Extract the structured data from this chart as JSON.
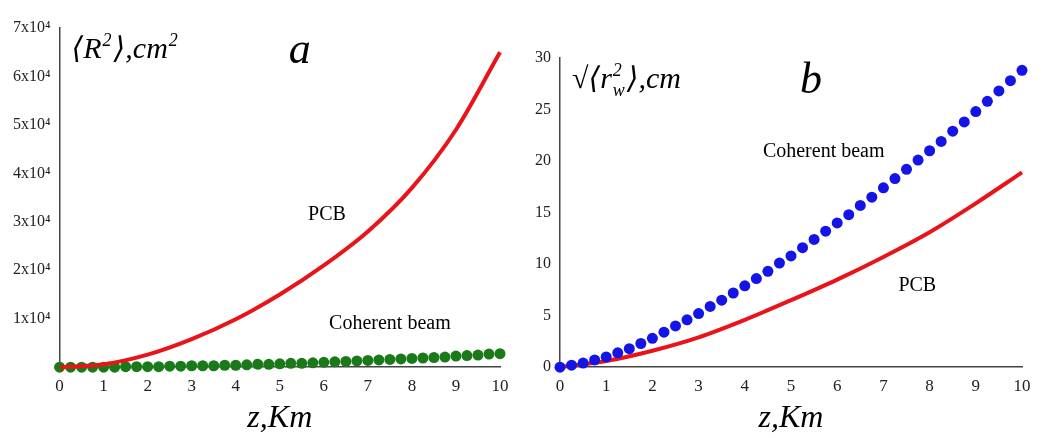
{
  "chart_data": [
    {
      "type": "line",
      "ylabel": "⟨R$^{2}$⟩,cm$^{2}$",
      "xlabel": "z,Km",
      "annotations": [
        "a"
      ],
      "xlim": [
        0,
        10
      ],
      "xticks": [
        0,
        1,
        2,
        3,
        4,
        5,
        6,
        7,
        8,
        9,
        10
      ],
      "ylim": [
        0,
        70000
      ],
      "yticks": [
        {
          "value": 0,
          "label": null
        },
        {
          "value": 10000,
          "label": "1x10⁴"
        },
        {
          "value": 20000,
          "label": "2x10⁴"
        },
        {
          "value": 30000,
          "label": "3x10⁴"
        },
        {
          "value": 40000,
          "label": "4x10⁴"
        },
        {
          "value": 50000,
          "label": "5x10⁴"
        },
        {
          "value": 60000,
          "label": "6x10⁴"
        },
        {
          "value": 70000,
          "label": "7x10⁴"
        }
      ],
      "series": [
        {
          "name": "PCB",
          "type": "line",
          "color": "#e8141a",
          "x": [
            0,
            1,
            2,
            3,
            4,
            5,
            6,
            7,
            8,
            9,
            10
          ],
          "values": [
            0,
            600,
            2600,
            5800,
            9900,
            15000,
            21000,
            28000,
            37000,
            49000,
            65000
          ]
        },
        {
          "name": "Coherent beam",
          "type": "scatter",
          "marker": "circle",
          "color": "#1a7a1a",
          "x": [
            0,
            0.25,
            0.5,
            0.75,
            1,
            1.25,
            1.5,
            1.75,
            2,
            2.25,
            2.5,
            2.75,
            3,
            3.25,
            3.5,
            3.75,
            4,
            4.25,
            4.5,
            4.75,
            5,
            5.25,
            5.5,
            5.75,
            6,
            6.25,
            6.5,
            6.75,
            7,
            7.25,
            7.5,
            7.75,
            8,
            8.25,
            8.5,
            8.75,
            9,
            9.25,
            9.5,
            9.75,
            10
          ],
          "values": [
            0,
            0,
            0,
            0,
            0,
            0,
            100,
            100,
            100,
            100,
            200,
            200,
            300,
            300,
            300,
            400,
            400,
            500,
            600,
            600,
            700,
            800,
            800,
            900,
            1000,
            1100,
            1200,
            1300,
            1400,
            1500,
            1600,
            1700,
            1800,
            1900,
            2000,
            2100,
            2300,
            2400,
            2500,
            2700,
            2800
          ]
        }
      ]
    },
    {
      "type": "line",
      "ylabel": "√⟨r$_{w}$$^{2}$⟩,cm",
      "xlabel": "z,Km",
      "annotations": [
        "b"
      ],
      "xlim": [
        0,
        10
      ],
      "xticks": [
        0,
        1,
        2,
        3,
        4,
        5,
        6,
        7,
        8,
        9,
        10
      ],
      "ylim": [
        0,
        30
      ],
      "yticks": [
        0,
        5,
        10,
        15,
        20,
        25,
        30
      ],
      "series": [
        {
          "name": "Coherent beam",
          "type": "scatter",
          "marker": "circle",
          "color": "#1414e6",
          "x": [
            0,
            0.25,
            0.5,
            0.75,
            1,
            1.25,
            1.5,
            1.75,
            2,
            2.25,
            2.5,
            2.75,
            3,
            3.25,
            3.5,
            3.75,
            4,
            4.25,
            4.5,
            4.75,
            5,
            5.25,
            5.5,
            5.75,
            6,
            6.25,
            6.5,
            6.75,
            7,
            7.25,
            7.5,
            7.75,
            8,
            8.25,
            8.5,
            8.75,
            9,
            9.25,
            9.5,
            9.75,
            10
          ],
          "values": [
            0,
            0.2,
            0.4,
            0.7,
            1.0,
            1.4,
            1.8,
            2.3,
            2.8,
            3.4,
            4.0,
            4.6,
            5.2,
            5.9,
            6.5,
            7.2,
            7.9,
            8.6,
            9.3,
            10.1,
            10.8,
            11.6,
            12.4,
            13.2,
            14.0,
            14.8,
            15.7,
            16.5,
            17.4,
            18.3,
            19.2,
            20.1,
            21.0,
            21.9,
            22.9,
            23.8,
            24.8,
            25.8,
            26.8,
            27.8,
            28.8
          ]
        },
        {
          "name": "PCB",
          "type": "line",
          "color": "#e8141a",
          "x": [
            0,
            1,
            2,
            3,
            4,
            5,
            6,
            7,
            8,
            9,
            10
          ],
          "values": [
            0,
            0.6,
            1.6,
            2.9,
            4.6,
            6.5,
            8.5,
            10.7,
            13.1,
            15.9,
            18.9
          ]
        }
      ]
    }
  ]
}
